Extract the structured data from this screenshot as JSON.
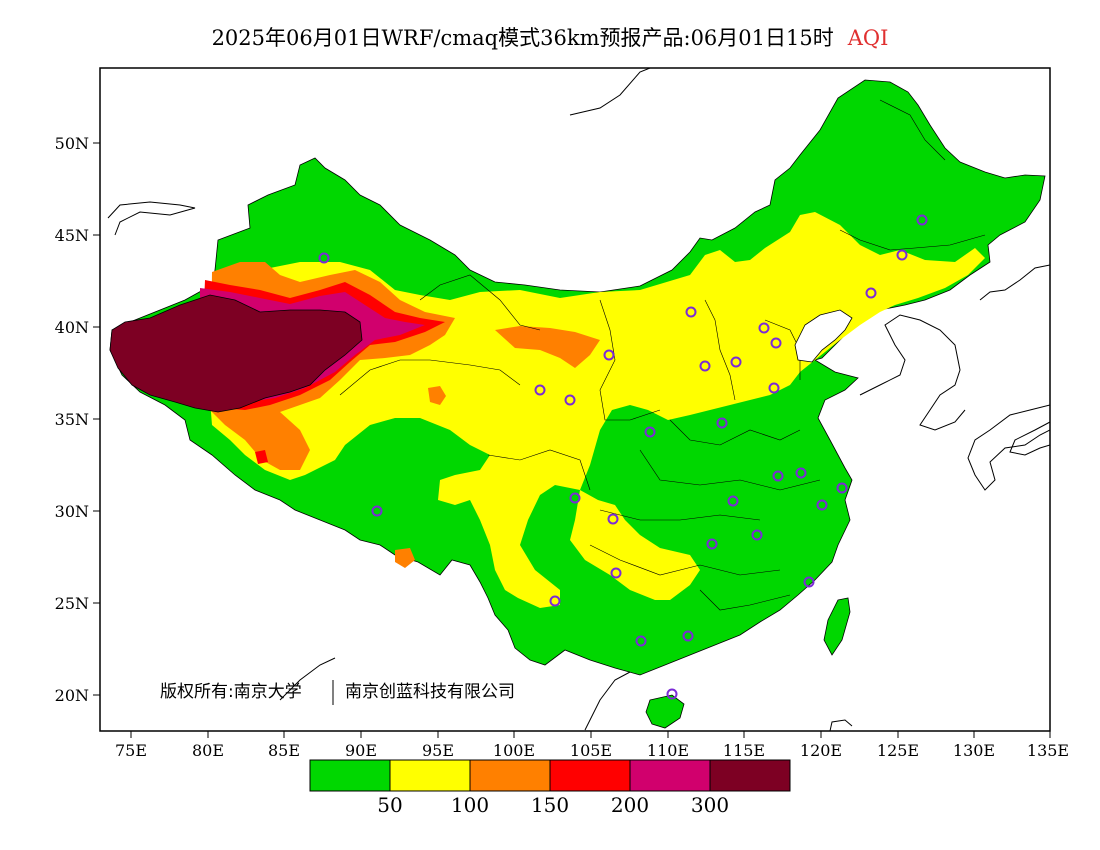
{
  "title": {
    "main": "2025年06月01日WRF/cmaq模式36km预报产品:06月01日15时",
    "variable": "AQI",
    "variable_color": "#e03030"
  },
  "axes": {
    "x_ticks": [
      "75E",
      "80E",
      "85E",
      "90E",
      "95E",
      "100E",
      "105E",
      "110E",
      "115E",
      "120E",
      "125E",
      "130E",
      "135E"
    ],
    "y_ticks": [
      "50N",
      "45N",
      "40N",
      "35N",
      "30N",
      "25N",
      "20N"
    ]
  },
  "legend": {
    "colors": [
      "#00d700",
      "#ffff00",
      "#ff8000",
      "#ff0000",
      "#d1006d",
      "#7d0023"
    ],
    "labels": [
      "50",
      "100",
      "150",
      "200",
      "300"
    ]
  },
  "copyright": {
    "owner": "版权所有:南京大学",
    "co_owner": "南京创蓝科技有限公司"
  }
}
